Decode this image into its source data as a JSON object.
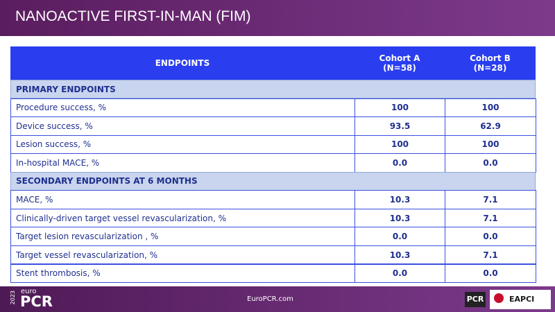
{
  "header": {
    "title": "NANOACTIVE FIRST-IN-MAN (FIM)"
  },
  "table": {
    "columns": [
      {
        "name": "ENDPOINTS"
      },
      {
        "name": "Cohort A",
        "n": "(N=58)"
      },
      {
        "name": "Cohort B",
        "n": "(N=28)"
      }
    ],
    "sections": [
      {
        "title": "PRIMARY ENDPOINTS",
        "rows": [
          [
            "Procedure success, %",
            "100",
            "100"
          ],
          [
            "Device success, %",
            "93.5",
            "62.9"
          ],
          [
            "Lesion success, %",
            "100",
            "100"
          ],
          [
            "In-hospital MACE, %",
            "0.0",
            "0.0"
          ]
        ]
      },
      {
        "title": "SECONDARY ENDPOINTS AT 6 MONTHS",
        "rows": [
          [
            "MACE, %",
            "10.3",
            "7.1"
          ],
          [
            "Clinically-driven target vessel revascularization, %",
            "10.3",
            "7.1"
          ],
          [
            "Target lesion revascularization , %",
            "0.0",
            "0.0"
          ],
          [
            "Target vessel revascularization, %",
            "10.3",
            "7.1"
          ],
          [
            "Stent thrombosis, %",
            "0.0",
            "0.0"
          ]
        ]
      }
    ]
  },
  "footer": {
    "logo": {
      "year": "2023",
      "small": "euro",
      "big": "PCR"
    },
    "url": "EuroPCR.com",
    "pcr": "PCR",
    "eapci": "EAPCI"
  }
}
